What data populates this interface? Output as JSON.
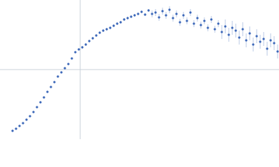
{
  "chart_data": {
    "type": "scatter",
    "xlim": [
      -1.15,
      2.85
    ],
    "ylim": [
      -1,
      1
    ],
    "series": [
      {
        "color": "#3a66b8",
        "x": [
          -0.97,
          -0.92,
          -0.87,
          -0.82,
          -0.77,
          -0.72,
          -0.67,
          -0.62,
          -0.57,
          -0.52,
          -0.47,
          -0.42,
          -0.37,
          -0.32,
          -0.27,
          -0.22,
          -0.17,
          -0.12,
          -0.07,
          -0.02,
          0.03,
          0.08,
          0.13,
          0.18,
          0.23,
          0.28,
          0.33,
          0.38,
          0.43,
          0.48,
          0.53,
          0.58,
          0.63,
          0.68,
          0.73,
          0.78,
          0.83,
          0.88,
          0.93,
          0.98,
          1.03,
          1.08,
          1.13,
          1.18,
          1.23,
          1.28,
          1.33,
          1.38,
          1.43,
          1.48,
          1.53,
          1.58,
          1.63,
          1.68,
          1.73,
          1.78,
          1.83,
          1.88,
          1.93,
          1.98,
          2.03,
          2.08,
          2.13,
          2.18,
          2.23,
          2.28,
          2.33,
          2.38,
          2.43,
          2.48,
          2.53,
          2.58,
          2.63,
          2.68,
          2.73,
          2.78,
          2.83
        ],
        "values": [
          -0.88,
          -0.85,
          -0.81,
          -0.77,
          -0.72,
          -0.67,
          -0.61,
          -0.54,
          -0.47,
          -0.4,
          -0.32,
          -0.25,
          -0.18,
          -0.1,
          -0.04,
          0.02,
          0.08,
          0.16,
          0.25,
          0.29,
          0.32,
          0.36,
          0.41,
          0.45,
          0.49,
          0.53,
          0.56,
          0.58,
          0.6,
          0.63,
          0.66,
          0.68,
          0.72,
          0.74,
          0.76,
          0.78,
          0.8,
          0.83,
          0.79,
          0.85,
          0.8,
          0.82,
          0.75,
          0.84,
          0.78,
          0.86,
          0.74,
          0.8,
          0.68,
          0.78,
          0.7,
          0.82,
          0.66,
          0.74,
          0.64,
          0.7,
          0.6,
          0.72,
          0.58,
          0.66,
          0.54,
          0.62,
          0.5,
          0.6,
          0.56,
          0.46,
          0.58,
          0.42,
          0.52,
          0.36,
          0.48,
          0.4,
          0.44,
          0.3,
          0.42,
          0.38,
          0.26
        ],
        "errors": [
          0.01,
          0.01,
          0.01,
          0.01,
          0.01,
          0.01,
          0.01,
          0.01,
          0.01,
          0.01,
          0.01,
          0.01,
          0.01,
          0.01,
          0.01,
          0.01,
          0.01,
          0.01,
          0.01,
          0.01,
          0.02,
          0.02,
          0.02,
          0.02,
          0.02,
          0.02,
          0.02,
          0.02,
          0.02,
          0.02,
          0.02,
          0.02,
          0.02,
          0.02,
          0.02,
          0.02,
          0.02,
          0.02,
          0.02,
          0.02,
          0.05,
          0.05,
          0.05,
          0.05,
          0.05,
          0.05,
          0.05,
          0.05,
          0.05,
          0.05,
          0.05,
          0.05,
          0.05,
          0.05,
          0.05,
          0.05,
          0.05,
          0.05,
          0.05,
          0.05,
          0.1,
          0.1,
          0.1,
          0.1,
          0.1,
          0.1,
          0.1,
          0.1,
          0.1,
          0.1,
          0.1,
          0.1,
          0.1,
          0.1,
          0.1,
          0.1,
          0.1
        ]
      }
    ]
  }
}
